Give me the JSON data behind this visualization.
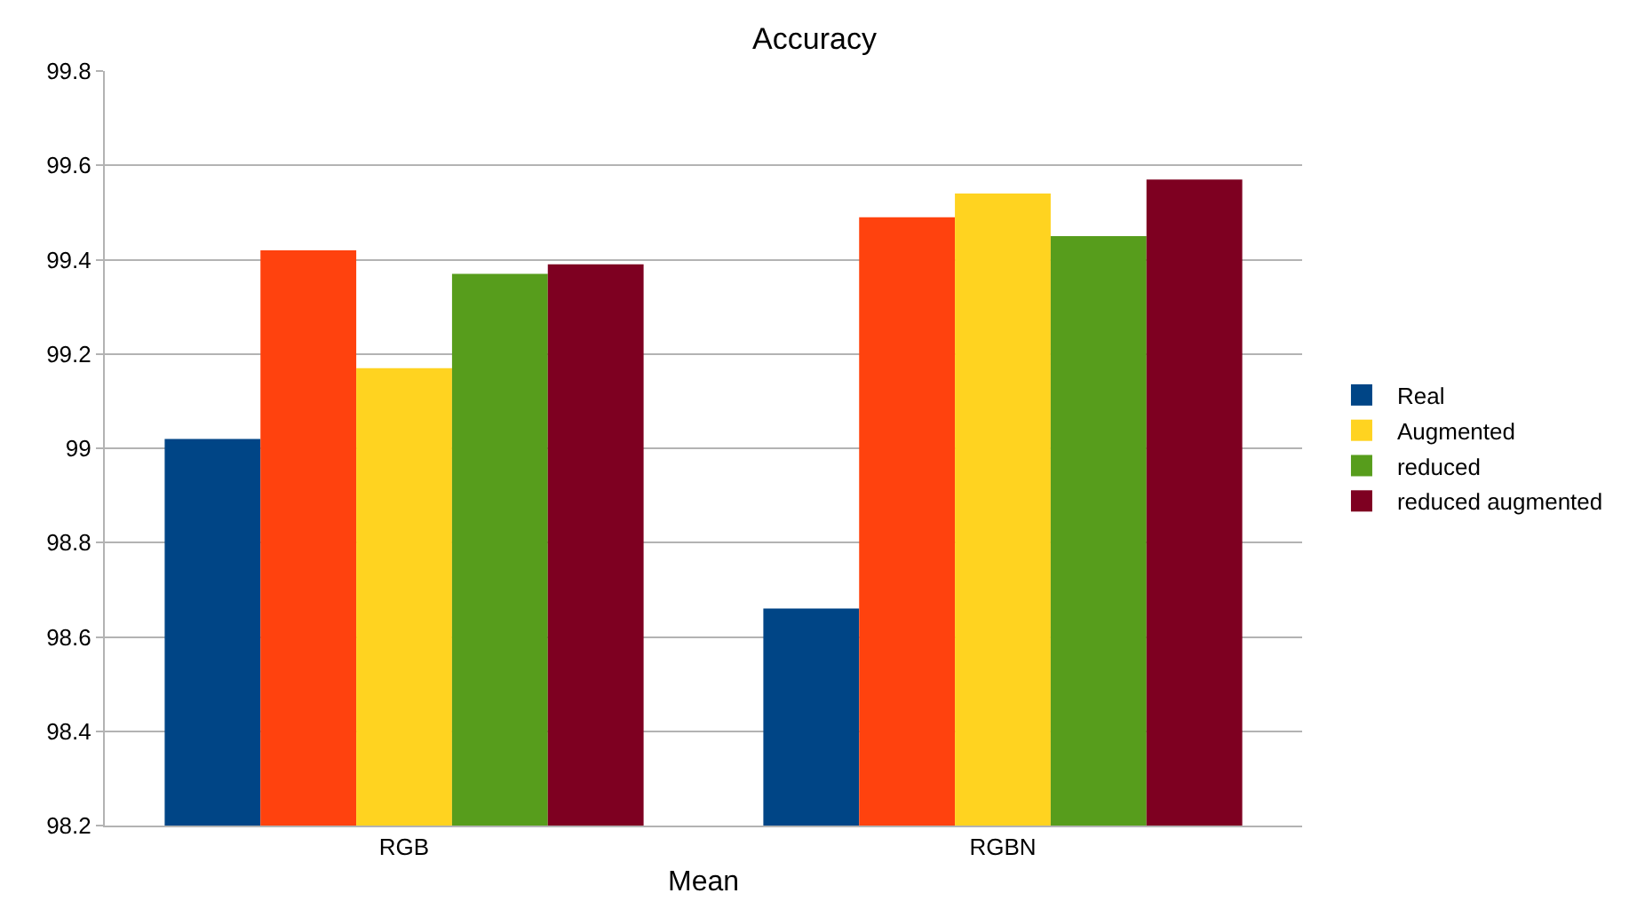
{
  "chart_data": {
    "type": "bar",
    "title": "Accuracy",
    "xlabel": "Mean",
    "categories": [
      "RGB",
      "RGBN"
    ],
    "series": [
      {
        "name": "Real",
        "color": "#004586",
        "values": [
          99.02,
          98.66
        ]
      },
      {
        "color": "#ff420e",
        "values": [
          99.42,
          99.49
        ]
      },
      {
        "name": "Augmented",
        "color": "#ffd320",
        "values": [
          99.17,
          99.54
        ]
      },
      {
        "name": "reduced",
        "color": "#579d1c",
        "values": [
          99.37,
          99.45
        ]
      },
      {
        "name": "reduced augmented",
        "color": "#7e0021",
        "values": [
          99.39,
          99.57
        ]
      }
    ],
    "ylim": [
      98.2,
      99.8
    ],
    "yticks": [
      {
        "value": 98.2,
        "label": "98.2"
      },
      {
        "value": 98.4,
        "label": "98.4"
      },
      {
        "value": 98.6,
        "label": "98.6"
      },
      {
        "value": 98.8,
        "label": "98.8"
      },
      {
        "value": 99,
        "label": "99"
      },
      {
        "value": 99.2,
        "label": "99.2"
      },
      {
        "value": 99.4,
        "label": "99.4"
      },
      {
        "value": 99.6,
        "label": "99.6"
      },
      {
        "value": 99.8,
        "label": "99.8"
      }
    ],
    "grid": "y",
    "legend": "right"
  }
}
